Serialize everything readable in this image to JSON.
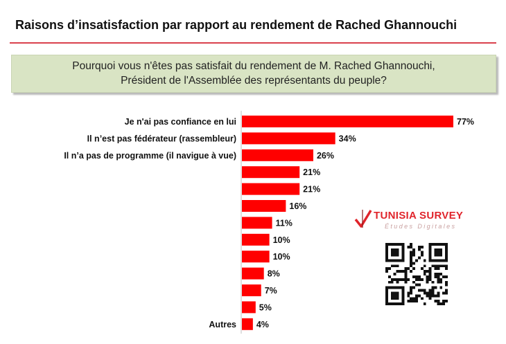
{
  "header": {
    "title": "Raisons d’insatisfaction  par rapport au rendement  de Rached Ghannouchi"
  },
  "question": {
    "line1": "Pourquoi vous n'êtes pas satisfait du rendement de M. Rached Ghannouchi,",
    "line2": "Président de l'Assemblée des représentants du peuple?"
  },
  "chart_data": {
    "type": "bar",
    "orientation": "horizontal",
    "categories": [
      "Je n'ai pas confiance en lui",
      "Il n’est pas fédérateur (rassembleur)",
      "Il n’a pas de programme (il navigue à vue)",
      "",
      "",
      "",
      "",
      "",
      "",
      "",
      "",
      "",
      "Autres"
    ],
    "values": [
      77,
      34,
      26,
      21,
      21,
      16,
      11,
      10,
      10,
      8,
      7,
      5,
      4
    ],
    "value_labels": [
      "77%",
      "34%",
      "26%",
      "21%",
      "21%",
      "16%",
      "11%",
      "10%",
      "10%",
      "8%",
      "7%",
      "5%",
      "4%"
    ],
    "unit": "%",
    "xlim": [
      0,
      100
    ],
    "grid": false,
    "legend": "none",
    "bar_color": "#ff0000"
  },
  "brand": {
    "name": "TUNISIA SURVEY",
    "subtitle": "Études Digitales",
    "logo_color": "#e0242b"
  },
  "qr_icon": "qr-code-icon"
}
